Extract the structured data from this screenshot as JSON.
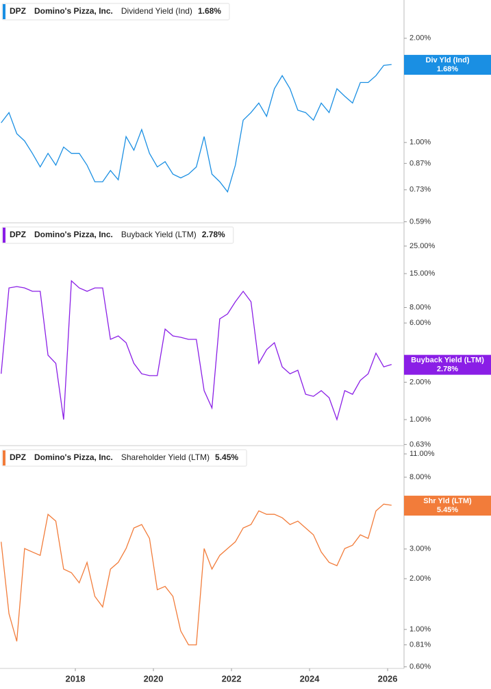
{
  "chart_data": [
    {
      "type": "line",
      "log": true,
      "legend": {
        "ticker": "DPZ",
        "company": "Domino's Pizza, Inc.",
        "value": "1.68%"
      },
      "badge": {
        "title": "Div Yld (Ind)",
        "value": "1.68%"
      },
      "xlim": [
        2016.07,
        2026.42
      ],
      "ylim": [
        0.586,
        2.58
      ],
      "yticks": [
        {
          "value": 2,
          "label": "2.00%"
        },
        {
          "value": 1,
          "label": "1.00%"
        },
        {
          "value": 0.87,
          "label": "0.87%"
        },
        {
          "value": 0.73,
          "label": "0.73%"
        },
        {
          "value": 0.59,
          "label": "0.59%"
        }
      ],
      "x": [
        2016.1,
        2016.3,
        2016.5,
        2016.7,
        2016.9,
        2017.1,
        2017.3,
        2017.5,
        2017.7,
        2017.9,
        2018.1,
        2018.3,
        2018.5,
        2018.7,
        2018.9,
        2019.1,
        2019.3,
        2019.5,
        2019.7,
        2019.9,
        2020.1,
        2020.3,
        2020.5,
        2020.7,
        2020.9,
        2021.1,
        2021.3,
        2021.5,
        2021.7,
        2021.9,
        2022.1,
        2022.3,
        2022.5,
        2022.7,
        2022.9,
        2023.1,
        2023.3,
        2023.5,
        2023.7,
        2023.9,
        2024.1,
        2024.3,
        2024.5,
        2024.7,
        2024.9,
        2025.1,
        2025.3,
        2025.5,
        2025.7,
        2025.9,
        2026.1
      ],
      "series": [
        {
          "name": "Dividend Yield (Ind)",
          "color": "#1a8fe3",
          "values": [
            1.14,
            1.22,
            1.06,
            1.01,
            0.93,
            0.85,
            0.93,
            0.86,
            0.97,
            0.93,
            0.93,
            0.86,
            0.77,
            0.77,
            0.83,
            0.78,
            1.04,
            0.95,
            1.09,
            0.93,
            0.85,
            0.88,
            0.81,
            0.79,
            0.81,
            0.85,
            1.04,
            0.81,
            0.77,
            0.72,
            0.86,
            1.16,
            1.22,
            1.3,
            1.19,
            1.43,
            1.56,
            1.43,
            1.24,
            1.22,
            1.16,
            1.3,
            1.22,
            1.43,
            1.36,
            1.3,
            1.49,
            1.49,
            1.56,
            1.67,
            1.68
          ]
        }
      ]
    },
    {
      "type": "line",
      "log": true,
      "legend": {
        "ticker": "DPZ",
        "company": "Domino's Pizza, Inc.",
        "value": "2.78%"
      },
      "badge": {
        "title": "Buyback Yield (LTM)",
        "value": "2.78%"
      },
      "xlim": [
        2016.07,
        2026.42
      ],
      "ylim": [
        0.617,
        38
      ],
      "yticks": [
        {
          "value": 25,
          "label": "25.00%"
        },
        {
          "value": 15,
          "label": "15.00%"
        },
        {
          "value": 8,
          "label": "8.00%"
        },
        {
          "value": 6,
          "label": "6.00%"
        },
        {
          "value": 2,
          "label": "2.00%"
        },
        {
          "value": 1,
          "label": "1.00%"
        },
        {
          "value": 0.63,
          "label": "0.63%"
        }
      ],
      "x": [
        2016.1,
        2016.3,
        2016.5,
        2016.7,
        2016.9,
        2017.1,
        2017.3,
        2017.5,
        2017.7,
        2017.9,
        2018.1,
        2018.3,
        2018.5,
        2018.7,
        2018.9,
        2019.1,
        2019.3,
        2019.5,
        2019.7,
        2019.9,
        2020.1,
        2020.3,
        2020.5,
        2020.7,
        2020.9,
        2021.1,
        2021.3,
        2021.5,
        2021.7,
        2021.9,
        2022.1,
        2022.3,
        2022.5,
        2022.7,
        2022.9,
        2023.1,
        2023.3,
        2023.5,
        2023.7,
        2023.9,
        2024.1,
        2024.3,
        2024.5,
        2024.7,
        2024.9,
        2025.1,
        2025.3,
        2025.5,
        2025.7,
        2025.9,
        2026.1
      ],
      "series": [
        {
          "name": "Buyback Yield (LTM)",
          "color": "#8a1ee6",
          "values": [
            2.34,
            11.5,
            11.8,
            11.5,
            10.8,
            10.8,
            3.3,
            2.84,
            1.0,
            13.1,
            11.5,
            10.8,
            11.5,
            11.5,
            4.43,
            4.72,
            4.16,
            2.84,
            2.34,
            2.26,
            2.26,
            5.36,
            4.72,
            4.6,
            4.43,
            4.43,
            1.71,
            1.24,
            6.48,
            7.1,
            8.9,
            10.8,
            8.9,
            2.84,
            3.66,
            4.16,
            2.66,
            2.34,
            2.5,
            1.6,
            1.54,
            1.71,
            1.5,
            1.0,
            1.71,
            1.6,
            2.07,
            2.34,
            3.43,
            2.66,
            2.78
          ]
        }
      ]
    },
    {
      "type": "line",
      "log": true,
      "legend": {
        "ticker": "DPZ",
        "company": "Domino's Pizza, Inc.",
        "value": "5.45%"
      },
      "badge": {
        "title": "Shr Yld (LTM)",
        "value": "5.45%"
      },
      "xlim": [
        2016.07,
        2026.42
      ],
      "ylim": [
        0.587,
        12.2
      ],
      "yticks": [
        {
          "value": 11,
          "label": "11.00%"
        },
        {
          "value": 8,
          "label": "8.00%"
        },
        {
          "value": 3,
          "label": "3.00%"
        },
        {
          "value": 2,
          "label": "2.00%"
        },
        {
          "value": 1,
          "label": "1.00%"
        },
        {
          "value": 0.81,
          "label": "0.81%"
        },
        {
          "value": 0.6,
          "label": "0.60%"
        }
      ],
      "xticks": [
        2018,
        2020,
        2022,
        2024,
        2026
      ],
      "x": [
        2016.1,
        2016.3,
        2016.5,
        2016.7,
        2016.9,
        2017.1,
        2017.3,
        2017.5,
        2017.7,
        2017.9,
        2018.1,
        2018.3,
        2018.5,
        2018.7,
        2018.9,
        2019.1,
        2019.3,
        2019.5,
        2019.7,
        2019.9,
        2020.1,
        2020.3,
        2020.5,
        2020.7,
        2020.9,
        2021.1,
        2021.3,
        2021.5,
        2021.7,
        2021.9,
        2022.1,
        2022.3,
        2022.5,
        2022.7,
        2022.9,
        2023.1,
        2023.3,
        2023.5,
        2023.7,
        2023.9,
        2024.1,
        2024.3,
        2024.5,
        2024.7,
        2024.9,
        2025.1,
        2025.3,
        2025.5,
        2025.7,
        2025.9,
        2026.1
      ],
      "series": [
        {
          "name": "Shareholder Yield (LTM)",
          "color": "#f27c3a",
          "values": [
            3.31,
            1.24,
            0.85,
            3.02,
            2.88,
            2.75,
            4.82,
            4.39,
            2.28,
            2.17,
            1.89,
            2.5,
            1.57,
            1.36,
            2.28,
            2.5,
            3.02,
            4.0,
            4.19,
            3.47,
            1.72,
            1.8,
            1.57,
            0.98,
            0.81,
            0.81,
            3.02,
            2.28,
            2.75,
            3.02,
            3.31,
            4.0,
            4.19,
            5.05,
            4.82,
            4.82,
            4.6,
            4.19,
            4.39,
            4.0,
            3.64,
            2.88,
            2.5,
            2.39,
            3.02,
            3.16,
            3.64,
            3.47,
            5.05,
            5.54,
            5.45
          ]
        }
      ]
    }
  ]
}
